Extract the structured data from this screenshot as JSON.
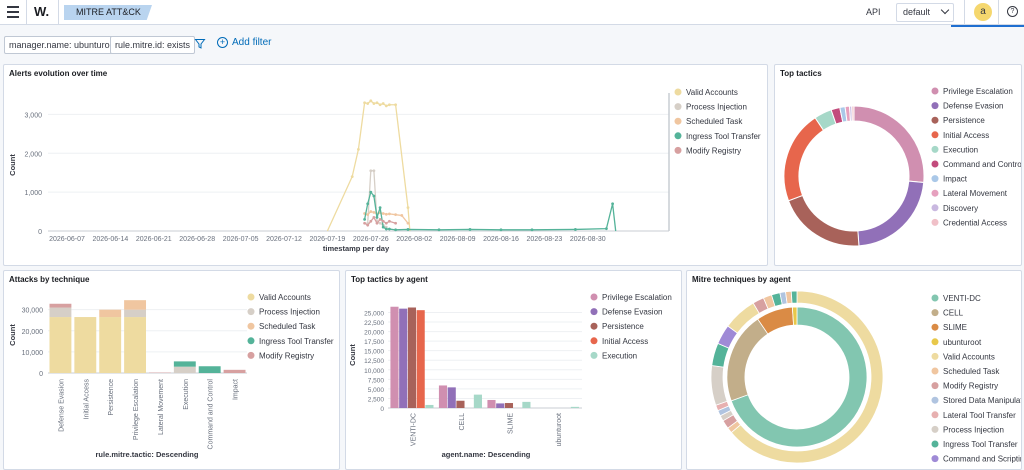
{
  "header": {
    "logo": "W.",
    "breadcrumb": "MITRE ATT&CK",
    "api_label": "API",
    "tenant": "default",
    "avatar": "a",
    "help": "?"
  },
  "filters": {
    "pills": [
      "manager.name: ubunturoot",
      "rule.mitre.id: exists"
    ],
    "add_filter": "Add filter"
  },
  "colors": {
    "valid": "#eedba0",
    "procinj": "#d6cfc7",
    "sched": "#f0c6a0",
    "ingress": "#54b399",
    "modreg": "#d7a0a0",
    "privesc": "#d08fb0",
    "defev": "#9170b8",
    "persist": "#a8625a",
    "initacc": "#e7664c",
    "exec": "#a6d8c8",
    "cmdctrl": "#c24b7c",
    "impact": "#aac8e8",
    "latmov": "#e6a0be",
    "discovery": "#c9b8e0",
    "credacc": "#f0c0c8",
    "ventidc": "#82c6b0",
    "cell": "#c2ae8a",
    "slime": "#da8b45",
    "ubunturoot": "#e8c84a",
    "stored": "#b0c4e0",
    "lateral": "#e7b0b0",
    "cmdscript": "#9f8ad6"
  },
  "chart_data": [
    {
      "type": "line",
      "title": "Alerts evolution over time",
      "xlabel": "timestamp per day",
      "ylabel": "Count",
      "ylim": [
        0,
        3500
      ],
      "yticks": [
        "0",
        "1,000",
        "2,000",
        "3,000"
      ],
      "xticks": [
        "2026-06-07",
        "2026-06-14",
        "2026-06-21",
        "2026-06-28",
        "2026-07-05",
        "2026-07-12",
        "2026-07-19",
        "2026-07-26",
        "2026-08-02",
        "2026-08-09",
        "2026-08-16",
        "2026-08-23",
        "2026-08-30"
      ],
      "legend_position": "right",
      "series": [
        {
          "name": "Valid Accounts",
          "points": [
            [
              42.0,
              0
            ],
            [
              46.0,
              1400
            ],
            [
              47.0,
              2100
            ],
            [
              48.0,
              3300
            ],
            [
              48.5,
              3280
            ],
            [
              49.0,
              3350
            ],
            [
              49.5,
              3280
            ],
            [
              50.0,
              3300
            ],
            [
              50.5,
              3250
            ],
            [
              51.0,
              3280
            ],
            [
              51.5,
              3220
            ],
            [
              52.0,
              3250
            ],
            [
              53.0,
              3250
            ],
            [
              55.0,
              600
            ],
            [
              55.3,
              0
            ]
          ]
        },
        {
          "name": "Process Injection",
          "points": [
            [
              48.5,
              200
            ],
            [
              49.0,
              1550
            ],
            [
              49.5,
              1550
            ],
            [
              50.0,
              250
            ],
            [
              50.5,
              200
            ],
            [
              51.0,
              150
            ],
            [
              51.5,
              100
            ]
          ]
        },
        {
          "name": "Scheduled Task",
          "points": [
            [
              48.0,
              450
            ],
            [
              48.5,
              420
            ],
            [
              49.0,
              500
            ],
            [
              49.5,
              480
            ],
            [
              50.0,
              440
            ],
            [
              50.5,
              470
            ],
            [
              51.0,
              450
            ],
            [
              51.5,
              430
            ],
            [
              52.0,
              440
            ],
            [
              53.0,
              420
            ],
            [
              54.0,
              400
            ],
            [
              55.0,
              200
            ]
          ]
        },
        {
          "name": "Ingress Tool Transfer",
          "points": [
            [
              48.0,
              300
            ],
            [
              48.5,
              700
            ],
            [
              49.0,
              1000
            ],
            [
              49.5,
              900
            ],
            [
              50.0,
              350
            ],
            [
              50.5,
              600
            ],
            [
              51.0,
              100
            ],
            [
              51.5,
              50
            ],
            [
              52.0,
              50
            ],
            [
              53.0,
              30
            ],
            [
              55.0,
              40
            ],
            [
              60.0,
              30
            ],
            [
              65.0,
              40
            ],
            [
              70.0,
              30
            ],
            [
              75.0,
              30
            ],
            [
              82.0,
              40
            ],
            [
              87.0,
              60
            ],
            [
              88.0,
              700
            ],
            [
              88.5,
              0
            ]
          ]
        },
        {
          "name": "Modify Registry",
          "points": [
            [
              48.0,
              200
            ],
            [
              48.5,
              150
            ],
            [
              49.0,
              250
            ],
            [
              49.5,
              350
            ],
            [
              50.0,
              200
            ],
            [
              50.5,
              300
            ],
            [
              51.0,
              250
            ],
            [
              51.5,
              200
            ],
            [
              52.0,
              250
            ],
            [
              53.0,
              200
            ]
          ]
        }
      ]
    },
    {
      "type": "pie",
      "title": "Top tactics",
      "legend_position": "right",
      "slices": [
        {
          "name": "Privilege Escalation",
          "value": 26
        },
        {
          "name": "Defense Evasion",
          "value": 22
        },
        {
          "name": "Persistence",
          "value": 20
        },
        {
          "name": "Initial Access",
          "value": 21
        },
        {
          "name": "Execution",
          "value": 4
        },
        {
          "name": "Command and Control",
          "value": 2
        },
        {
          "name": "Impact",
          "value": 1.2
        },
        {
          "name": "Lateral Movement",
          "value": 1
        },
        {
          "name": "Discovery",
          "value": 0.5
        },
        {
          "name": "Credential Access",
          "value": 0.5
        }
      ]
    },
    {
      "type": "bar",
      "title": "Attacks by technique",
      "xlabel": "rule.mitre.tactic: Descending",
      "ylabel": "Count",
      "ylim": [
        0,
        36000
      ],
      "yticks": [
        "0",
        "10,000",
        "20,000",
        "30,000"
      ],
      "stacked": true,
      "legend_position": "right",
      "categories": [
        "Defense Evasion",
        "Initial Access",
        "Persistence",
        "Privilege Escalation",
        "Lateral Movement",
        "Execution",
        "Command and Control",
        "Impact"
      ],
      "series": [
        {
          "name": "Valid Accounts",
          "values": [
            26500,
            26500,
            26500,
            26500,
            0,
            0,
            0,
            0
          ]
        },
        {
          "name": "Process Injection",
          "values": [
            4500,
            0,
            0,
            3500,
            0,
            3000,
            0,
            0
          ]
        },
        {
          "name": "Scheduled Task",
          "values": [
            0,
            0,
            3500,
            4500,
            0,
            0,
            0,
            0
          ]
        },
        {
          "name": "Ingress Tool Transfer",
          "values": [
            0,
            0,
            0,
            0,
            0,
            2500,
            3200,
            0
          ]
        },
        {
          "name": "Modify Registry",
          "values": [
            1800,
            0,
            0,
            0,
            200,
            0,
            0,
            1500
          ]
        }
      ]
    },
    {
      "type": "bar",
      "title": "Top tactics by agent",
      "xlabel": "agent.name: Descending",
      "ylabel": "Count",
      "ylim": [
        0,
        28000
      ],
      "yticks": [
        "0",
        "2,500",
        "5,000",
        "7,500",
        "10,000",
        "12,500",
        "15,000",
        "17,500",
        "20,000",
        "22,500",
        "25,000"
      ],
      "legend_position": "right",
      "categories": [
        "VENTI-DC",
        "CELL",
        "SLIME",
        "ubunturoot"
      ],
      "series": [
        {
          "name": "Privilege Escalation",
          "values": [
            26500,
            5900,
            2100,
            0
          ]
        },
        {
          "name": "Defense Evasion",
          "values": [
            26000,
            5400,
            1200,
            0
          ]
        },
        {
          "name": "Persistence",
          "values": [
            26300,
            1900,
            1300,
            0
          ]
        },
        {
          "name": "Initial Access",
          "values": [
            25600,
            0,
            0,
            0
          ]
        },
        {
          "name": "Execution",
          "values": [
            800,
            3500,
            1600,
            300
          ]
        }
      ]
    },
    {
      "type": "pie",
      "title": "Mitre techniques by agent",
      "legend_position": "right",
      "legend": [
        "VENTI-DC",
        "CELL",
        "SLIME",
        "ubunturoot",
        "Valid Accounts",
        "Scheduled Task",
        "Modify Registry",
        "Stored Data Manipulat",
        "Lateral Tool Transfer",
        "Process Injection",
        "Ingress Tool Transfer",
        "Command and Scriptin"
      ],
      "inner": [
        {
          "name": "VENTI-DC",
          "value": 66
        },
        {
          "name": "CELL",
          "value": 20
        },
        {
          "name": "SLIME",
          "value": 8
        },
        {
          "name": "ubunturoot",
          "value": 1
        }
      ],
      "outer": [
        {
          "name": "Valid Accounts",
          "value": 60
        },
        {
          "name": "Scheduled Task",
          "value": 1
        },
        {
          "name": "Modify Registry",
          "value": 1.5
        },
        {
          "name": "Process Injection",
          "value": 1
        },
        {
          "name": "Stored Data Manipulat",
          "value": 1
        },
        {
          "name": "Lateral Tool Transfer",
          "value": 1
        },
        {
          "name": "Process Injection",
          "value": 7
        },
        {
          "name": "Ingress Tool Transfer",
          "value": 4
        },
        {
          "name": "Command and Scriptin",
          "value": 3.5
        },
        {
          "name": "Valid Accounts",
          "value": 6
        },
        {
          "name": "Modify Registry",
          "value": 2
        },
        {
          "name": "Scheduled Task",
          "value": 1.5
        },
        {
          "name": "Ingress Tool Transfer",
          "value": 1.5
        },
        {
          "name": "Stored Data Manipulat",
          "value": 1
        },
        {
          "name": "Scheduled Task",
          "value": 1
        },
        {
          "name": "Ingress Tool Transfer",
          "value": 1
        }
      ]
    }
  ]
}
